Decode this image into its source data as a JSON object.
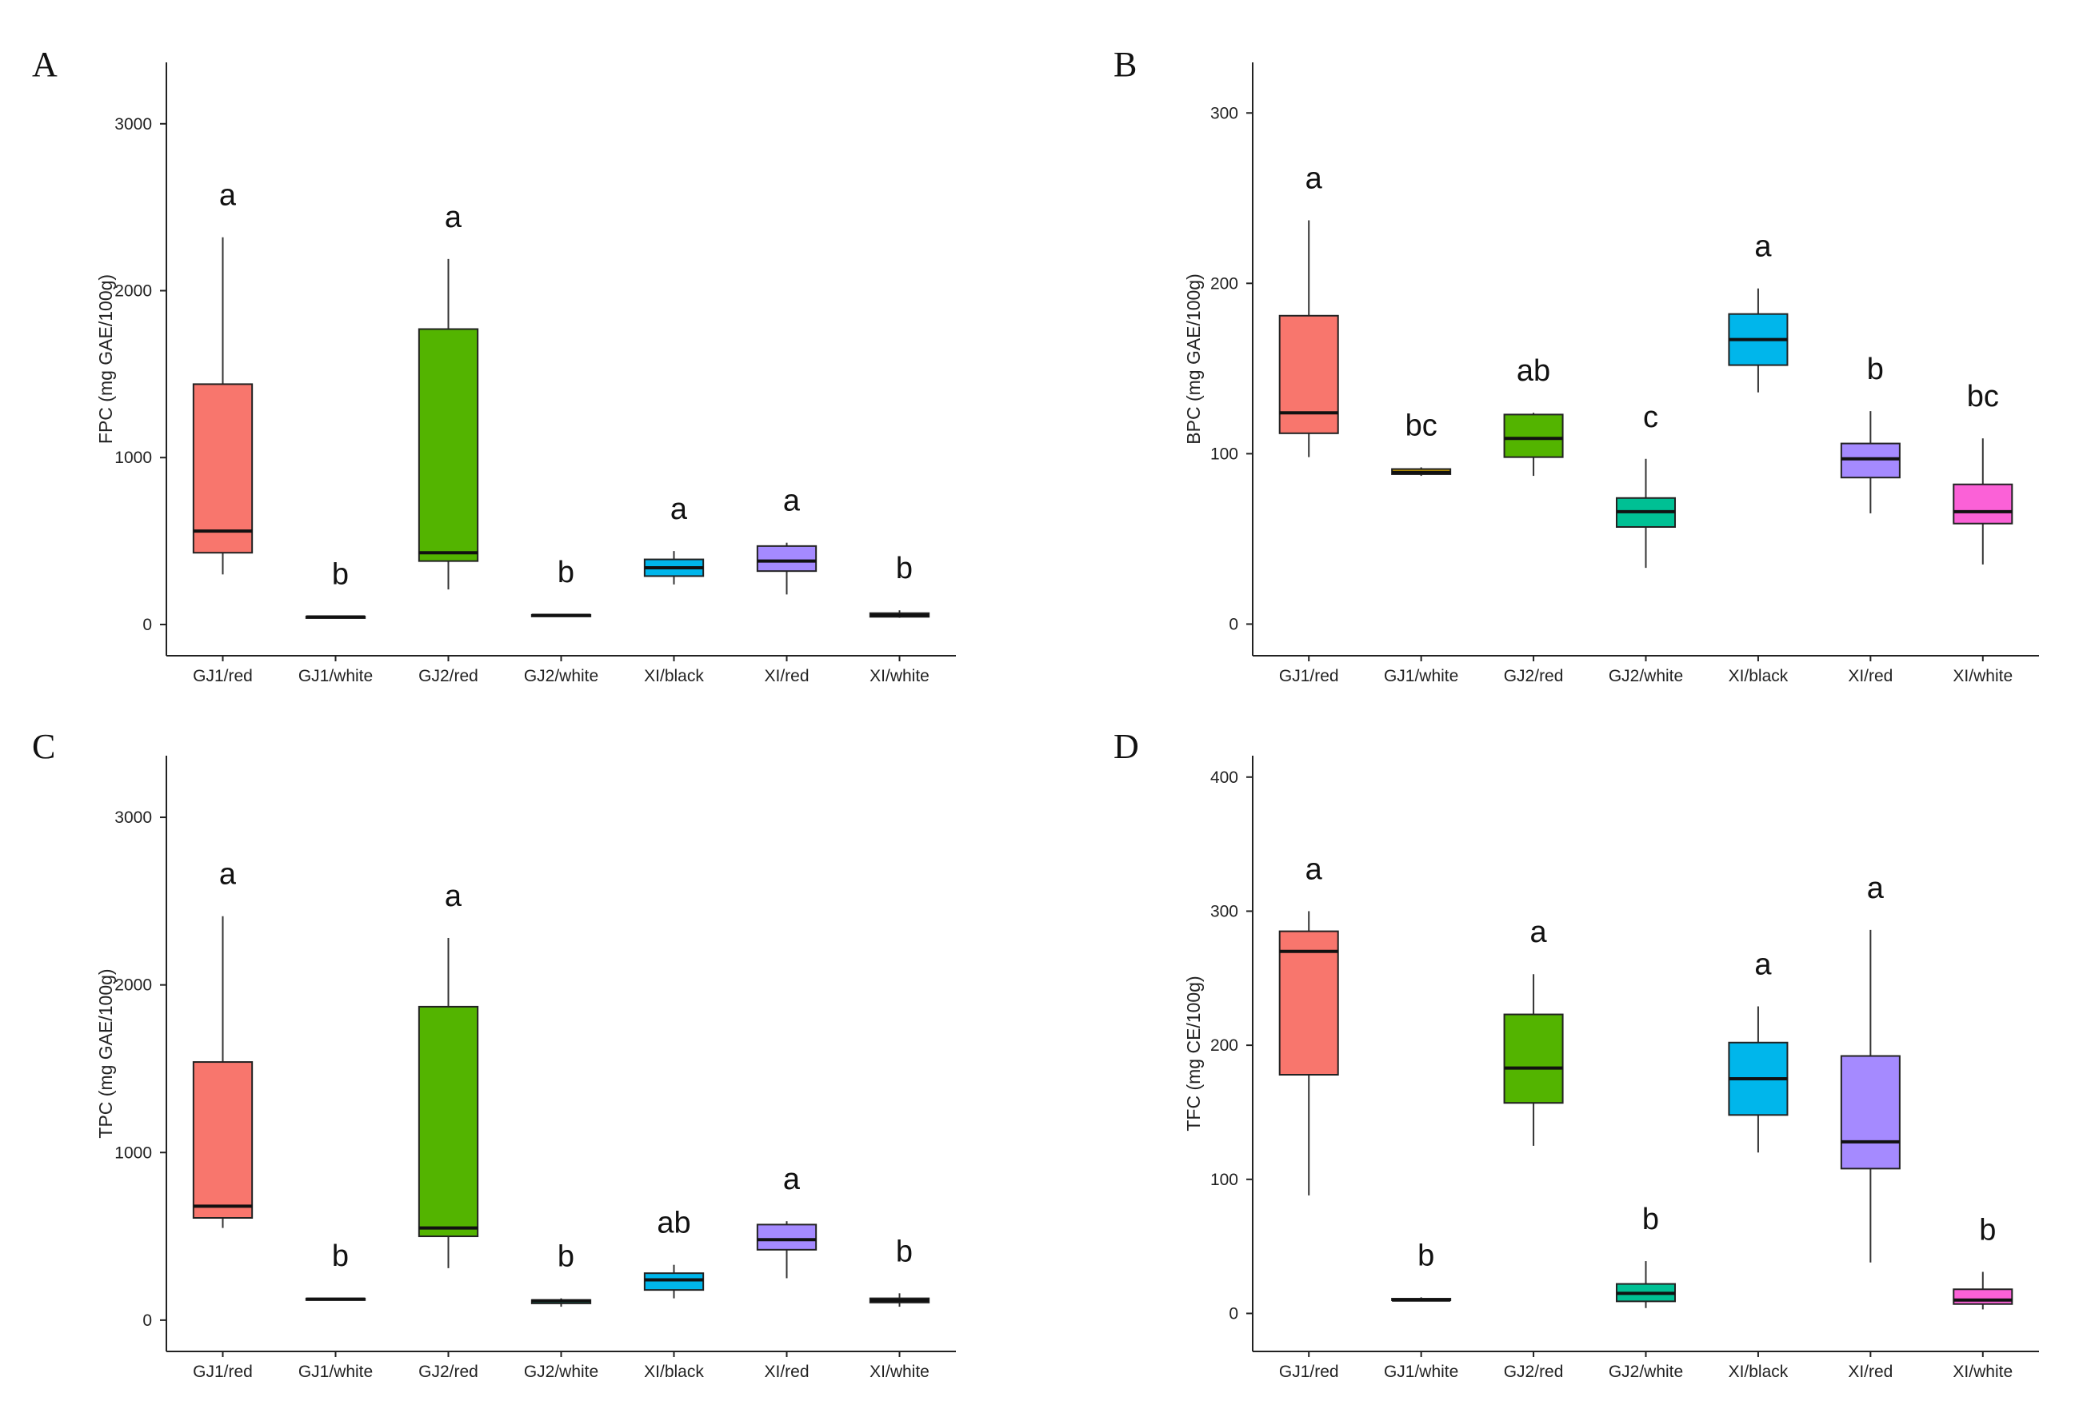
{
  "chart_data": [
    {
      "panel": "A",
      "type": "box",
      "ylabel": "FPC (mg GAE/100g)",
      "ylim": [
        -120,
        3320
      ],
      "yticks": [
        0,
        1000,
        2000,
        3000
      ],
      "categories": [
        "GJ1/red",
        "GJ1/white",
        "GJ2/red",
        "GJ2/white",
        "XI/black",
        "XI/red",
        "XI/white"
      ],
      "colors": [
        "#F8766D",
        "#C49A00",
        "#53B400",
        "#00C094",
        "#00B6EB",
        "#A58AFF",
        "#FB61D7"
      ],
      "boxes": [
        {
          "min": 300,
          "q1": 430,
          "median": 560,
          "q3": 1440,
          "max": 2320,
          "letter": "a"
        },
        {
          "min": 40,
          "q1": 42,
          "median": 45,
          "q3": 48,
          "max": 50,
          "letter": "b"
        },
        {
          "min": 210,
          "q1": 380,
          "median": 430,
          "q3": 1770,
          "max": 2190,
          "letter": "a"
        },
        {
          "min": 48,
          "q1": 52,
          "median": 55,
          "q3": 58,
          "max": 62,
          "letter": "b"
        },
        {
          "min": 240,
          "q1": 290,
          "median": 340,
          "q3": 390,
          "max": 440,
          "letter": "a"
        },
        {
          "min": 180,
          "q1": 320,
          "median": 380,
          "q3": 470,
          "max": 490,
          "letter": "a"
        },
        {
          "min": 40,
          "q1": 46,
          "median": 55,
          "q3": 68,
          "max": 85,
          "letter": "b"
        }
      ]
    },
    {
      "panel": "B",
      "type": "box",
      "ylabel": "BPC (mg GAE/100g)",
      "ylim": [
        -12,
        325
      ],
      "yticks": [
        0,
        100,
        200,
        300
      ],
      "categories": [
        "GJ1/red",
        "GJ1/white",
        "GJ2/red",
        "GJ2/white",
        "XI/black",
        "XI/red",
        "XI/white"
      ],
      "colors": [
        "#F8766D",
        "#C49A00",
        "#53B400",
        "#00C094",
        "#00B6EB",
        "#A58AFF",
        "#FB61D7"
      ],
      "boxes": [
        {
          "min": 98,
          "q1": 112,
          "median": 124,
          "q3": 181,
          "max": 237,
          "letter": "a"
        },
        {
          "min": 87,
          "q1": 88,
          "median": 89,
          "q3": 91,
          "max": 92,
          "letter": "bc"
        },
        {
          "min": 87,
          "q1": 98,
          "median": 109,
          "q3": 123,
          "max": 124,
          "letter": "ab"
        },
        {
          "min": 33,
          "q1": 57,
          "median": 66,
          "q3": 74,
          "max": 97,
          "letter": "c"
        },
        {
          "min": 136,
          "q1": 152,
          "median": 167,
          "q3": 182,
          "max": 197,
          "letter": "a"
        },
        {
          "min": 65,
          "q1": 86,
          "median": 97,
          "q3": 106,
          "max": 125,
          "letter": "b"
        },
        {
          "min": 35,
          "q1": 59,
          "median": 66,
          "q3": 82,
          "max": 109,
          "letter": "bc"
        }
      ]
    },
    {
      "panel": "C",
      "type": "box",
      "ylabel": "TPC (mg GAE/100g)",
      "ylim": [
        -120,
        3320
      ],
      "yticks": [
        0,
        1000,
        2000,
        3000
      ],
      "categories": [
        "GJ1/red",
        "GJ1/white",
        "GJ2/red",
        "GJ2/white",
        "XI/black",
        "XI/red",
        "XI/white"
      ],
      "colors": [
        "#F8766D",
        "#C49A00",
        "#53B400",
        "#00C094",
        "#00B6EB",
        "#A58AFF",
        "#FB61D7"
      ],
      "boxes": [
        {
          "min": 550,
          "q1": 610,
          "median": 680,
          "q3": 1540,
          "max": 2410,
          "letter": "a"
        },
        {
          "min": 118,
          "q1": 121,
          "median": 125,
          "q3": 129,
          "max": 132,
          "letter": "b"
        },
        {
          "min": 310,
          "q1": 500,
          "median": 550,
          "q3": 1870,
          "max": 2280,
          "letter": "a"
        },
        {
          "min": 80,
          "q1": 100,
          "median": 115,
          "q3": 120,
          "max": 130,
          "letter": "b"
        },
        {
          "min": 130,
          "q1": 180,
          "median": 240,
          "q3": 280,
          "max": 330,
          "letter": "ab"
        },
        {
          "min": 250,
          "q1": 420,
          "median": 480,
          "q3": 570,
          "max": 590,
          "letter": "a"
        },
        {
          "min": 80,
          "q1": 105,
          "median": 118,
          "q3": 130,
          "max": 160,
          "letter": "b"
        }
      ]
    },
    {
      "panel": "D",
      "type": "box",
      "ylabel": "TFC (mg CE/100g)",
      "ylim": [
        -20,
        410
      ],
      "yticks": [
        0,
        100,
        200,
        300,
        400
      ],
      "categories": [
        "GJ1/red",
        "GJ1/white",
        "GJ2/red",
        "GJ2/white",
        "XI/black",
        "XI/red",
        "XI/white"
      ],
      "colors": [
        "#F8766D",
        "#C49A00",
        "#53B400",
        "#00C094",
        "#00B6EB",
        "#A58AFF",
        "#FB61D7"
      ],
      "boxes": [
        {
          "min": 88,
          "q1": 178,
          "median": 270,
          "q3": 285,
          "max": 300,
          "letter": "a"
        },
        {
          "min": 9,
          "q1": 10,
          "median": 10,
          "q3": 11,
          "max": 12,
          "letter": "b"
        },
        {
          "min": 125,
          "q1": 157,
          "median": 183,
          "q3": 223,
          "max": 253,
          "letter": "a"
        },
        {
          "min": 4,
          "q1": 9,
          "median": 15,
          "q3": 22,
          "max": 39,
          "letter": "b"
        },
        {
          "min": 120,
          "q1": 148,
          "median": 175,
          "q3": 202,
          "max": 229,
          "letter": "a"
        },
        {
          "min": 38,
          "q1": 108,
          "median": 128,
          "q3": 192,
          "max": 286,
          "letter": "a"
        },
        {
          "min": 3,
          "q1": 7,
          "median": 10,
          "q3": 18,
          "max": 31,
          "letter": "b"
        }
      ]
    }
  ]
}
